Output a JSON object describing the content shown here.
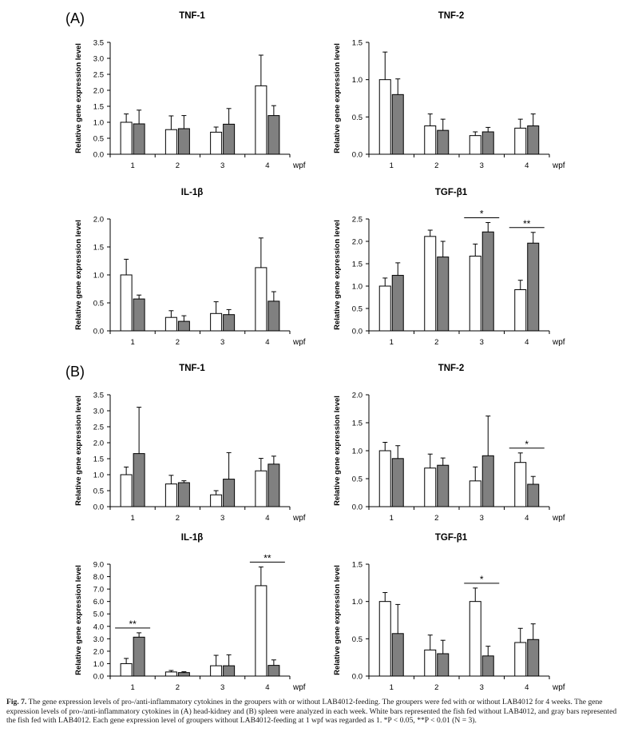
{
  "panel_labels": [
    "(A)",
    "(B)"
  ],
  "caption": {
    "figure_label": "Fig. 7.",
    "text": " The gene expression levels of pro-/anti-inflammatory cytokines in the groupers with or without LAB4012-feeding. The groupers were fed with or without LAB4012 for 4 weeks. The gene expression levels of pro-/anti-inflammatory cytokines in (A) head-kidney and (B) spleen were analyzed in each week. White bars represented the fish fed without LAB4012, and gray bars represented the fish fed with LAB4012. Each gene expression level of groupers without LAB4012-feeding at 1 wpf was regarded as 1. *P < 0.05, **P < 0.01 (N = 3)."
  },
  "colors": {
    "white_bar": "#ffffff",
    "gray_bar": "#808080",
    "axis": "#000000"
  },
  "chart_data": [
    {
      "type": "bar",
      "panel": "(A)",
      "title": "TNF-1",
      "ylabel": "Relative gene expression level",
      "xunit": "wpf",
      "categories": [
        "1",
        "2",
        "3",
        "4"
      ],
      "ylim": [
        0,
        3.5
      ],
      "yticks": [
        "0.0",
        "0.5",
        "1.0",
        "1.5",
        "2.0",
        "2.5",
        "3.0",
        "3.5"
      ],
      "series": [
        {
          "values": [
            1.0,
            0.77,
            0.69,
            2.14
          ],
          "errors": [
            0.26,
            0.43,
            0.16,
            0.96
          ]
        },
        {
          "values": [
            0.95,
            0.8,
            0.94,
            1.21
          ],
          "errors": [
            0.43,
            0.41,
            0.49,
            0.31
          ]
        }
      ],
      "significance": []
    },
    {
      "type": "bar",
      "panel": "(A)",
      "title": "TNF-2",
      "ylabel": "Relative gene expression level",
      "xunit": "wpf",
      "categories": [
        "1",
        "2",
        "3",
        "4"
      ],
      "ylim": [
        0,
        1.5
      ],
      "yticks": [
        "0.0",
        "0.5",
        "1.0",
        "1.5"
      ],
      "series": [
        {
          "values": [
            1.0,
            0.38,
            0.25,
            0.35
          ],
          "errors": [
            0.37,
            0.16,
            0.05,
            0.12
          ]
        },
        {
          "values": [
            0.8,
            0.32,
            0.3,
            0.38
          ],
          "errors": [
            0.21,
            0.15,
            0.06,
            0.16
          ]
        }
      ],
      "significance": []
    },
    {
      "type": "bar",
      "panel": "(A)",
      "title": "IL-1β",
      "ylabel": "Relative gene expression level",
      "xunit": "wpf",
      "categories": [
        "1",
        "2",
        "3",
        "4"
      ],
      "ylim": [
        0,
        2.0
      ],
      "yticks": [
        "0.0",
        "0.5",
        "1.0",
        "1.5",
        "2.0"
      ],
      "series": [
        {
          "values": [
            1.0,
            0.24,
            0.31,
            1.13
          ],
          "errors": [
            0.28,
            0.12,
            0.21,
            0.53
          ]
        },
        {
          "values": [
            0.57,
            0.17,
            0.29,
            0.53
          ],
          "errors": [
            0.07,
            0.1,
            0.09,
            0.17
          ]
        }
      ],
      "significance": []
    },
    {
      "type": "bar",
      "panel": "(A)",
      "title": "TGF-β1",
      "ylabel": "Relative gene expression level",
      "xunit": "wpf",
      "categories": [
        "1",
        "2",
        "3",
        "4"
      ],
      "ylim": [
        0,
        2.5
      ],
      "yticks": [
        "0.0",
        "0.5",
        "1.0",
        "1.5",
        "2.0",
        "2.5"
      ],
      "series": [
        {
          "values": [
            1.0,
            2.11,
            1.67,
            0.92
          ],
          "errors": [
            0.18,
            0.14,
            0.27,
            0.21
          ]
        },
        {
          "values": [
            1.24,
            1.65,
            2.21,
            1.96
          ],
          "errors": [
            0.28,
            0.35,
            0.21,
            0.24
          ]
        }
      ],
      "significance": [
        {
          "category": "3",
          "label": "*"
        },
        {
          "category": "4",
          "label": "**"
        }
      ]
    },
    {
      "type": "bar",
      "panel": "(B)",
      "title": "TNF-1",
      "ylabel": "Relative gene expression level",
      "xunit": "wpf",
      "categories": [
        "1",
        "2",
        "3",
        "4"
      ],
      "ylim": [
        0,
        3.5
      ],
      "yticks": [
        "0.0",
        "0.5",
        "1.0",
        "1.5",
        "2.0",
        "2.5",
        "3.0",
        "3.5"
      ],
      "series": [
        {
          "values": [
            1.0,
            0.71,
            0.37,
            1.12
          ],
          "errors": [
            0.24,
            0.27,
            0.13,
            0.39
          ]
        },
        {
          "values": [
            1.66,
            0.75,
            0.86,
            1.33
          ],
          "errors": [
            1.45,
            0.06,
            0.83,
            0.25
          ]
        }
      ],
      "significance": []
    },
    {
      "type": "bar",
      "panel": "(B)",
      "title": "TNF-2",
      "ylabel": "Relative gene expression level",
      "xunit": "wpf",
      "categories": [
        "1",
        "2",
        "3",
        "4"
      ],
      "ylim": [
        0,
        2.0
      ],
      "yticks": [
        "0.0",
        "0.5",
        "1.0",
        "1.5",
        "2.0"
      ],
      "series": [
        {
          "values": [
            1.0,
            0.69,
            0.46,
            0.79
          ],
          "errors": [
            0.15,
            0.25,
            0.25,
            0.17
          ]
        },
        {
          "values": [
            0.86,
            0.74,
            0.91,
            0.4
          ],
          "errors": [
            0.23,
            0.13,
            0.71,
            0.14
          ]
        }
      ],
      "significance": [
        {
          "category": "4",
          "label": "*"
        }
      ]
    },
    {
      "type": "bar",
      "panel": "(B)",
      "title": "IL-1β",
      "ylabel": "Relative gene expression level",
      "xunit": "wpf",
      "categories": [
        "1",
        "2",
        "3",
        "4"
      ],
      "ylim": [
        0,
        9.0
      ],
      "yticks": [
        "0.0",
        "1.0",
        "2.0",
        "3.0",
        "4.0",
        "5.0",
        "6.0",
        "7.0",
        "8.0",
        "9.0"
      ],
      "series": [
        {
          "values": [
            1.0,
            0.33,
            0.83,
            7.27
          ],
          "errors": [
            0.42,
            0.12,
            0.84,
            1.51
          ]
        },
        {
          "values": [
            3.13,
            0.28,
            0.83,
            0.86
          ],
          "errors": [
            0.35,
            0.07,
            0.88,
            0.44
          ]
        }
      ],
      "significance": [
        {
          "category": "1",
          "label": "**"
        },
        {
          "category": "4",
          "label": "**"
        }
      ]
    },
    {
      "type": "bar",
      "panel": "(B)",
      "title": "TGF-β1",
      "ylabel": "Relative gene expression level",
      "xunit": "wpf",
      "categories": [
        "1",
        "2",
        "3",
        "4"
      ],
      "ylim": [
        0,
        1.5
      ],
      "yticks": [
        "0.0",
        "0.5",
        "1.0",
        "1.5"
      ],
      "series": [
        {
          "values": [
            1.0,
            0.35,
            1.0,
            0.45
          ],
          "errors": [
            0.12,
            0.2,
            0.18,
            0.19
          ]
        },
        {
          "values": [
            0.57,
            0.3,
            0.27,
            0.49
          ],
          "errors": [
            0.39,
            0.18,
            0.13,
            0.21
          ]
        }
      ],
      "significance": [
        {
          "category": "3",
          "label": "*"
        }
      ]
    }
  ]
}
